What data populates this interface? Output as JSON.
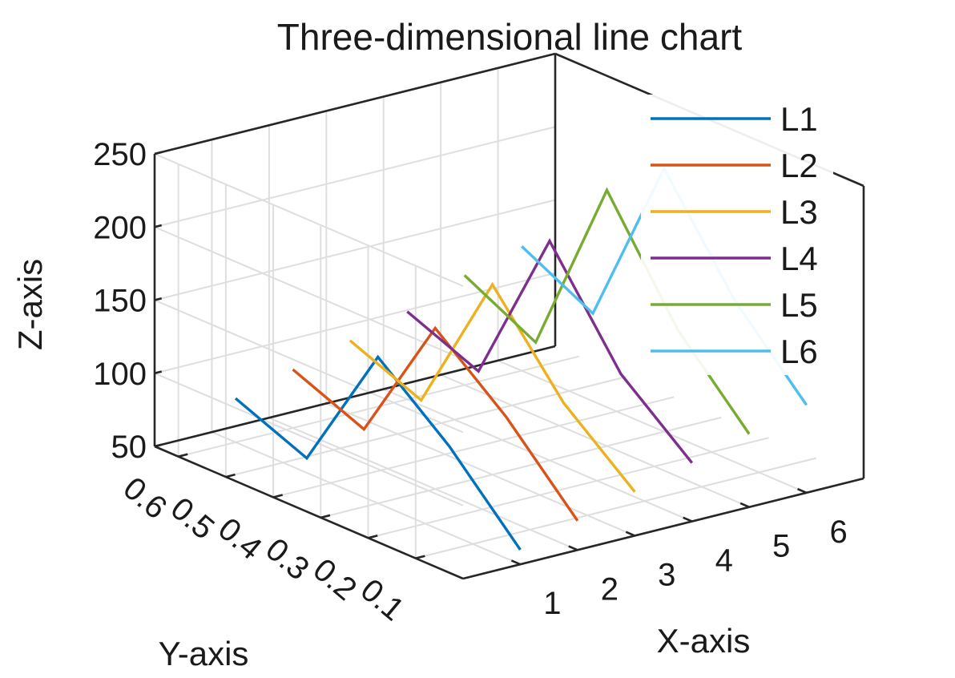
{
  "chart_data": {
    "type": "line",
    "title": "Three-dimensional line chart",
    "xlabel": "X-axis",
    "ylabel": "Y-axis",
    "zlabel": "Z-axis",
    "x_ticks": [
      "1",
      "2",
      "3",
      "4",
      "5",
      "6"
    ],
    "y_ticks": [
      "0.1",
      "0.2",
      "0.3",
      "0.4",
      "0.5",
      "0.6"
    ],
    "z_ticks": [
      "50",
      "100",
      "150",
      "200",
      "250"
    ],
    "xlim": [
      0,
      7
    ],
    "ylim": [
      0,
      0.65
    ],
    "zlim": [
      50,
      250
    ],
    "grid": true,
    "box": true,
    "legend_position": "top-right",
    "series": [
      {
        "name": "L1",
        "color": "#0072BD",
        "x": [
          1,
          1,
          1,
          1,
          1
        ],
        "y": [
          0.6,
          0.45,
          0.3,
          0.15,
          0.0
        ],
        "z": [
          80,
          60,
          150,
          110,
          60
        ]
      },
      {
        "name": "L2",
        "color": "#D95319",
        "x": [
          2,
          2,
          2,
          2,
          2
        ],
        "y": [
          0.6,
          0.45,
          0.3,
          0.15,
          0.0
        ],
        "z": [
          90,
          70,
          160,
          120,
          70
        ]
      },
      {
        "name": "L3",
        "color": "#EDB120",
        "x": [
          3,
          3,
          3,
          3,
          3
        ],
        "y": [
          0.6,
          0.45,
          0.3,
          0.15,
          0.0
        ],
        "z": [
          100,
          80,
          180,
          120,
          80
        ]
      },
      {
        "name": "L4",
        "color": "#7E2F8E",
        "x": [
          4,
          4,
          4,
          4,
          4
        ],
        "y": [
          0.6,
          0.45,
          0.3,
          0.15,
          0.0
        ],
        "z": [
          110,
          90,
          200,
          130,
          90
        ]
      },
      {
        "name": "L5",
        "color": "#77AC30",
        "x": [
          5,
          5,
          5,
          5,
          5
        ],
        "y": [
          0.6,
          0.45,
          0.3,
          0.15,
          0.0
        ],
        "z": [
          125,
          100,
          225,
          150,
          100
        ]
      },
      {
        "name": "L6",
        "color": "#4DBEEE",
        "x": [
          6,
          6,
          6,
          6,
          6
        ],
        "y": [
          0.6,
          0.45,
          0.3,
          0.15,
          0.0
        ],
        "z": [
          135,
          110,
          230,
          160,
          110
        ]
      }
    ]
  }
}
